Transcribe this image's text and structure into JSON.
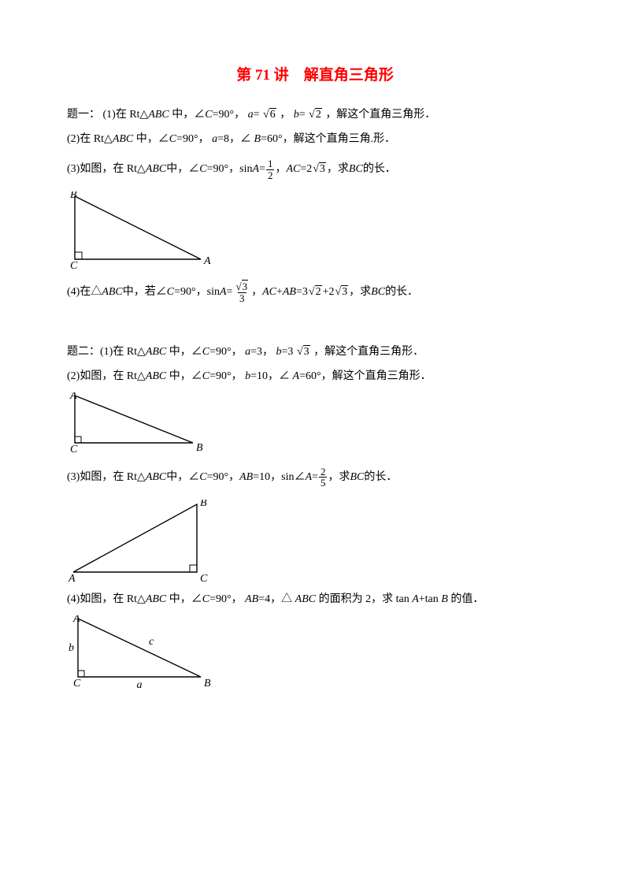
{
  "title": "第 71 讲　解直角三角形",
  "q1": {
    "p1_a": "题一：  (1)在 Rt△",
    "p1_b": "中，∠",
    "p1_c": "=90°，",
    "p1_d": "=",
    "p1_e": "，",
    "p1_f": "=",
    "p1_g": "，解这个直角三角形．",
    "sqrt6": "6",
    "sqrt2": "2",
    "p2_a": "(2)在 Rt△",
    "p2_b": "中，∠",
    "p2_c": "=90°，",
    "p2_d": "=8，∠",
    "p2_e": "=60°，解这个直角三角.形．",
    "p3_a": "(3)如图，在 Rt△",
    "p3_b": "中，∠",
    "p3_c": "=90°，sin",
    "p3_d": "=",
    "p3_e": "，",
    "p3_f": "=2",
    "p3_g": "，求 ",
    "p3_h": " 的长．",
    "sqrt3": "3",
    "frac12_n": "1",
    "frac12_d": "2",
    "p4_a": "(4)在△",
    "p4_b": "中，若∠",
    "p4_c": "=90°，sin",
    "p4_d": "=",
    "p4_e": "，",
    "p4_f": "+",
    "p4_g": "=3",
    "p4_h": " +2",
    "p4_i": "，求 ",
    "p4_j": " 的长．",
    "sqrt3b": "3",
    "sqrt2b": "2",
    "sqrt3c": "3",
    "frac_s3_3_d": "3"
  },
  "q2": {
    "p1_a": "题二：(1)在 Rt△",
    "p1_b": "中，∠",
    "p1_c": "=90°，",
    "p1_d": "=3，",
    "p1_e": "=3",
    "p1_f": "，解这个直角三角形．",
    "sqrt3": "3",
    "p2_a": "(2)如图，在 Rt△",
    "p2_b": "中，∠",
    "p2_c": "=90°，",
    "p2_d": "=10，∠",
    "p2_e": "=60°，解这个直角三角形．",
    "p3_a": "(3)如图，在 Rt△",
    "p3_b": "中，∠",
    "p3_c": "=90°，",
    "p3_d": "=10，sin∠",
    "p3_e": "=",
    "p3_f": "，求 ",
    "p3_g": " 的长．",
    "frac25_n": "2",
    "frac25_d": "5",
    "p4_a": "(4)如图，在 Rt△",
    "p4_b": "中，∠",
    "p4_c": "=90°，",
    "p4_d": "=4，△",
    "p4_e": " 的面积为 2，求 tan",
    "p4_f": "+tan",
    "p4_g": " 的值．"
  },
  "sym": {
    "ABC": "ABC",
    "C": "C",
    "a": "a",
    "b": "b",
    "B": "B",
    "A": "A",
    "AC": "AC",
    "BC": "BC",
    "AB": "AB"
  },
  "fig1": {
    "labels": {
      "B": "B",
      "C": "C",
      "A": "A"
    },
    "pts": {
      "B": [
        10,
        6
      ],
      "C": [
        10,
        86
      ],
      "A": [
        170,
        86
      ]
    },
    "rt_size": 9,
    "stroke": "#000000",
    "stroke_width": 1.4
  },
  "fig2": {
    "labels": {
      "A": "A",
      "C": "C",
      "B": "B"
    },
    "pts": {
      "A": [
        10,
        4
      ],
      "C": [
        10,
        64
      ],
      "B": [
        160,
        64
      ]
    },
    "rt_size": 8,
    "stroke": "#000000",
    "stroke_width": 1.4
  },
  "fig3": {
    "labels": {
      "A": "A",
      "C": "C",
      "B": "B"
    },
    "pts": {
      "A": [
        8,
        92
      ],
      "C": [
        165,
        92
      ],
      "B": [
        165,
        6
      ]
    },
    "rt_size": 9,
    "stroke": "#000000",
    "stroke_width": 1.4
  },
  "fig4": {
    "labels": {
      "A": "A",
      "C": "C",
      "B": "B",
      "a": "a",
      "b": "b",
      "c": "c"
    },
    "pts": {
      "A": [
        14,
        4
      ],
      "C": [
        14,
        78
      ],
      "B": [
        170,
        78
      ]
    },
    "rt_size": 8,
    "stroke": "#000000",
    "stroke_width": 1.4
  }
}
